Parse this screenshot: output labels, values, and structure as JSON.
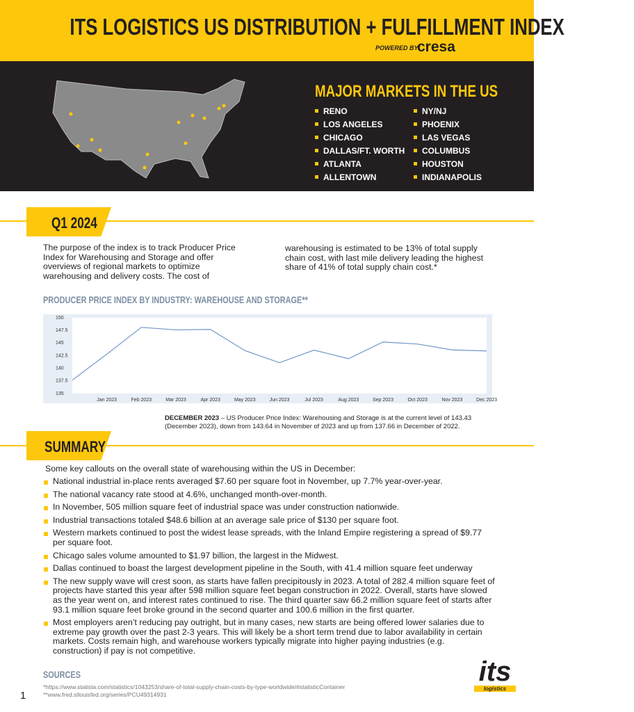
{
  "header": {
    "title": "ITS LOGISTICS US DISTRIBUTION + FULFILLMENT INDEX",
    "powered_by": "POWERED BY:",
    "brand": "cresa"
  },
  "markets": {
    "title": "MAJOR MARKETS IN THE US",
    "items": [
      "RENO",
      "LOS ANGELES",
      "CHICAGO",
      "DALLAS/FT. WORTH",
      "ATLANTA",
      "ALLENTOWN",
      "NY/NJ",
      "PHOENIX",
      "LAS VEGAS",
      "COLUMBUS",
      "HOUSTON",
      "INDIANAPOLIS"
    ]
  },
  "section1": {
    "tag": "Q1 2024",
    "paragraphs": [
      "The purpose of the index is to track Producer Price Index for Warehousing and Storage and offer overviews of regional markets to optimize warehousing and delivery costs. The cost of",
      "warehousing is estimated to be 13% of total supply chain cost, with last mile delivery leading the highest share of 41% of total supply chain cost.*"
    ]
  },
  "chart_data": {
    "type": "line",
    "title": "PRODUCER PRICE INDEX BY INDUSTRY: WAREHOUSE AND STORAGE**",
    "categories": [
      null,
      "Jan 2023",
      "Feb 2023",
      "Mar 2023",
      "Apr 2023",
      "May 2023",
      "Jun 2023",
      "Jul 2023",
      "Aug 2023",
      "Sep 2023",
      "Oct 2023",
      "Nov 2023",
      "Dec 2023"
    ],
    "values": [
      137.66,
      142.8,
      148.1,
      147.6,
      147.7,
      143.5,
      141.1,
      143.6,
      141.9,
      145.2,
      144.8,
      143.64,
      143.43
    ],
    "color": "#7096c8",
    "ylim": [
      135,
      150
    ],
    "yticks": [
      135,
      137.5,
      140,
      142.5,
      145,
      147.5,
      150
    ],
    "grid": false
  },
  "caption": {
    "label": "DECEMBER 2023",
    "text": " – US Producer Price Index: Warehousing and Storage is at the current level of 143.43 (December 2023), down from 143.64 in November of 2023 and up from 137.66 in December of 2022."
  },
  "summary": {
    "tag": "SUMMARY",
    "intro": "Some key callouts on the overall state of warehousing within the US in December:",
    "bullets": [
      "National industrial in-place rents averaged $7.60 per square foot in November, up 7.7% year-over-year.",
      "The national vacancy rate stood at 4.6%, unchanged month-over-month.",
      "In November, 505 million square feet of industrial space was under construction nationwide.",
      "Industrial transactions totaled $48.6 billion at an average sale price of $130 per square foot.",
      "Western markets continued to post the widest lease spreads, with the Inland Empire registering a spread of $9.77 per square foot.",
      "Chicago sales volume amounted to $1.97 billion, the largest in the Midwest.",
      "Dallas continued to boast the largest development pipeline in the South, with 41.4 million square feet underway",
      "The new supply wave will crest soon, as starts have fallen precipitously in 2023. A total of 282.4 million square feet of projects have started this year after 598 million square feet began construction in 2022. Overall, starts have slowed as the year went on, and interest rates continued to rise. The third quarter saw 66.2 million square feet of starts after 93.1 million square feet broke ground in the second quarter and 100.6 million in the first quarter.",
      "Most employers aren’t reducing pay outright, but in many cases, new starts are being offered lower salaries due to extreme pay growth over the past 2-3 years. This will likely be a short term trend due to labor availability in certain markets. Costs remain high, and warehouse workers typically migrate into higher paying industries (e.g. construction) if pay is not competitive."
    ]
  },
  "sources": {
    "title": "SOURCES",
    "items": [
      "*https://www.statista.com/statistics/1043253/share-of-total-supply-chain-costs-by-type-worldwide/#statisticContainer",
      "**www.fred.stlouisfed.org/series/PCU49314931"
    ]
  },
  "page_number": "1",
  "logo": {
    "text": "its",
    "sub": "logistics"
  }
}
